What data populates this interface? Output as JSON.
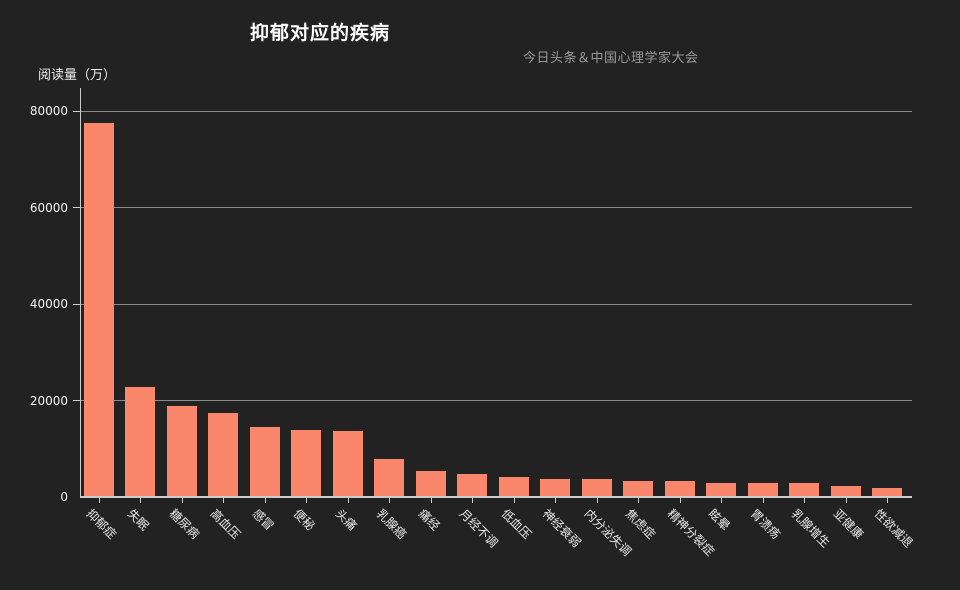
{
  "colors": {
    "background": "#222222",
    "bar": "#fa866c",
    "grid_line": "#8c8c8c",
    "axis_line": "#cccccc",
    "title": "#ffffff",
    "subtitle": "#999999",
    "y_axis_name": "#eeeeee",
    "tick_label": "#f2f2f2",
    "category_label": "#e6e6e6"
  },
  "chart_data": {
    "type": "bar",
    "title": "抑郁对应的疾病",
    "subtitle": "今日头条＆中国心理学家大会",
    "xlabel": "",
    "ylabel": "阅读量（万）",
    "ylim": [
      0,
      80000
    ],
    "yticks": [
      0,
      20000,
      40000,
      60000,
      80000
    ],
    "ytick_labels": [
      "0",
      "20000",
      "40000",
      "60000",
      "80000"
    ],
    "grid": "horizontal",
    "legend_position": "none",
    "categories": [
      "抑郁症",
      "失眠",
      "糖尿病",
      "高血压",
      "感冒",
      "便秘",
      "头痛",
      "乳腺癌",
      "痛经",
      "月经不调",
      "低血压",
      "神经衰弱",
      "内分泌失调",
      "焦虑症",
      "精神分裂症",
      "眩晕",
      "胃溃疡",
      "乳腺增生",
      "亚健康",
      "性欲减退"
    ],
    "values": [
      77500,
      22800,
      18800,
      17500,
      14600,
      13800,
      13600,
      7800,
      5300,
      4700,
      4200,
      3800,
      3700,
      3400,
      3300,
      2900,
      3000,
      2800,
      2300,
      1900
    ]
  }
}
